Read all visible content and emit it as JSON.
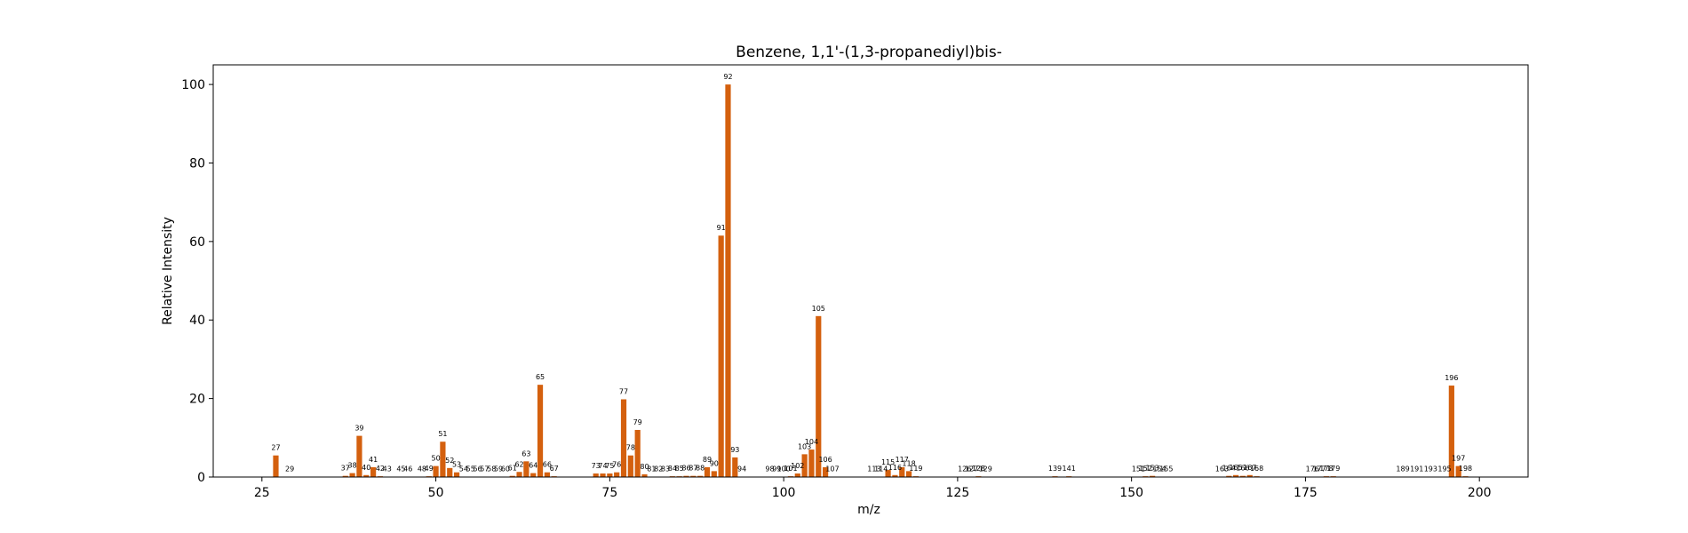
{
  "chart_data": {
    "type": "bar",
    "title": "Benzene, 1,1'-(1,3-propanediyl)bis-",
    "xlabel": "m/z",
    "ylabel": "Relative Intensity",
    "xlim": [
      18,
      207
    ],
    "ylim": [
      0,
      105
    ],
    "xticks": [
      25,
      50,
      75,
      100,
      125,
      150,
      175,
      200
    ],
    "yticks": [
      0,
      20,
      40,
      60,
      80,
      100
    ],
    "grid": false,
    "bar_color": "#d4600e",
    "x": [
      27,
      29,
      37,
      38,
      39,
      40,
      41,
      42,
      43,
      45,
      46,
      48,
      49,
      50,
      51,
      52,
      53,
      54,
      55,
      56,
      57,
      58,
      59,
      60,
      61,
      62,
      63,
      64,
      65,
      66,
      67,
      73,
      74,
      75,
      76,
      77,
      78,
      79,
      80,
      81,
      82,
      83,
      84,
      85,
      86,
      87,
      88,
      89,
      90,
      91,
      92,
      93,
      94,
      98,
      99,
      100,
      101,
      102,
      103,
      104,
      105,
      106,
      107,
      113,
      114,
      115,
      116,
      117,
      118,
      119,
      126,
      127,
      128,
      129,
      139,
      141,
      151,
      152,
      153,
      154,
      155,
      163,
      164,
      165,
      166,
      167,
      168,
      176,
      177,
      178,
      179,
      189,
      191,
      193,
      195,
      196,
      197,
      198
    ],
    "values": [
      5.5,
      0.1,
      0.3,
      1.0,
      10.5,
      0.5,
      2.5,
      0.2,
      0.1,
      0.1,
      0.1,
      0.1,
      0.2,
      2.8,
      9.0,
      2.3,
      1.2,
      0.1,
      0.1,
      0.1,
      0.1,
      0.1,
      0.1,
      0.1,
      0.3,
      1.3,
      4.0,
      1.0,
      23.5,
      1.2,
      0.2,
      0.9,
      0.9,
      0.9,
      1.2,
      19.8,
      5.5,
      12.0,
      0.7,
      0.1,
      0.1,
      0.1,
      0.2,
      0.2,
      0.3,
      0.3,
      0.3,
      2.5,
      1.5,
      61.5,
      100,
      5.0,
      0.1,
      0.1,
      0.1,
      0.1,
      0.2,
      0.9,
      5.8,
      7.0,
      41.0,
      2.5,
      0.1,
      0.1,
      0.1,
      1.8,
      0.5,
      2.5,
      1.5,
      0.2,
      0.1,
      0.1,
      0.2,
      0.1,
      0.2,
      0.2,
      0.1,
      0.2,
      0.3,
      0.1,
      0.1,
      0.1,
      0.3,
      0.5,
      0.3,
      0.5,
      0.2,
      0.1,
      0.1,
      0.2,
      0.2,
      0.1,
      0.1,
      0.1,
      0.1,
      23.3,
      2.8,
      0.2
    ]
  }
}
